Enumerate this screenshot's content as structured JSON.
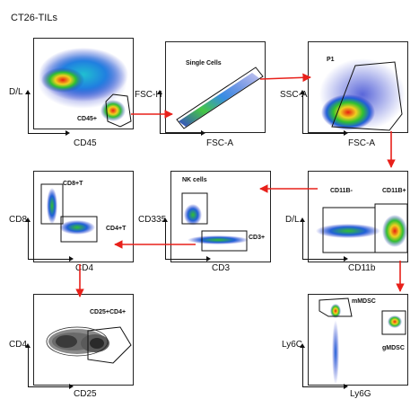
{
  "figure": {
    "title": "CT26-TILs"
  },
  "panels": {
    "cd45": {
      "ylabel": "D/L",
      "xlabel": "CD45",
      "gates": {
        "cd45pos": "CD45+"
      }
    },
    "singlets": {
      "ylabel": "FSC-H",
      "xlabel": "FSC-A",
      "gates": {
        "single": "Single Cells"
      }
    },
    "p1": {
      "ylabel": "SSC-A",
      "xlabel": "FSC-A",
      "gates": {
        "p1": "P1"
      }
    },
    "cd11b": {
      "ylabel": "D/L",
      "xlabel": "CD11b",
      "gates": {
        "neg": "CD11B-",
        "pos": "CD11B+"
      }
    },
    "nk": {
      "ylabel": "CD335",
      "xlabel": "CD3",
      "gates": {
        "nk": "NK cells",
        "cd3": "CD3+"
      }
    },
    "tcells": {
      "ylabel": "CD8",
      "xlabel": "CD4",
      "gates": {
        "cd8": "CD8+T",
        "cd4": "CD4+T"
      }
    },
    "treg": {
      "ylabel": "CD4",
      "xlabel": "CD25",
      "gates": {
        "treg": "CD25+CD4+"
      }
    },
    "mdsc": {
      "ylabel": "Ly6C",
      "xlabel": "Ly6G",
      "gates": {
        "m": "mMDSC",
        "g": "gMDSC"
      }
    }
  },
  "colors": {
    "arrow": "#e8201a",
    "gate": "#111111",
    "density_low": "#2030c8",
    "density_mid": "#30c030",
    "density_high": "#e82010"
  }
}
